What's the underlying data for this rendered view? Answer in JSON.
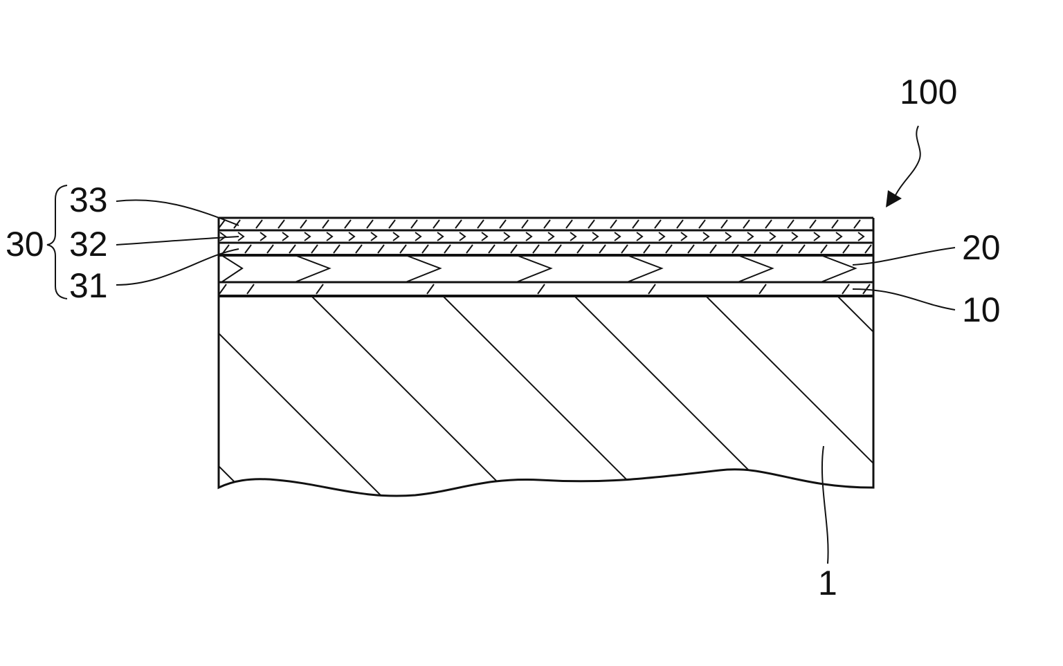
{
  "labels": {
    "assembly": "100",
    "group": "30",
    "layer_33": "33",
    "layer_32": "32",
    "layer_31": "31",
    "layer_20": "20",
    "layer_10": "10",
    "substrate": "1"
  },
  "colors": {
    "ink": "#111111",
    "background": "#ffffff"
  }
}
